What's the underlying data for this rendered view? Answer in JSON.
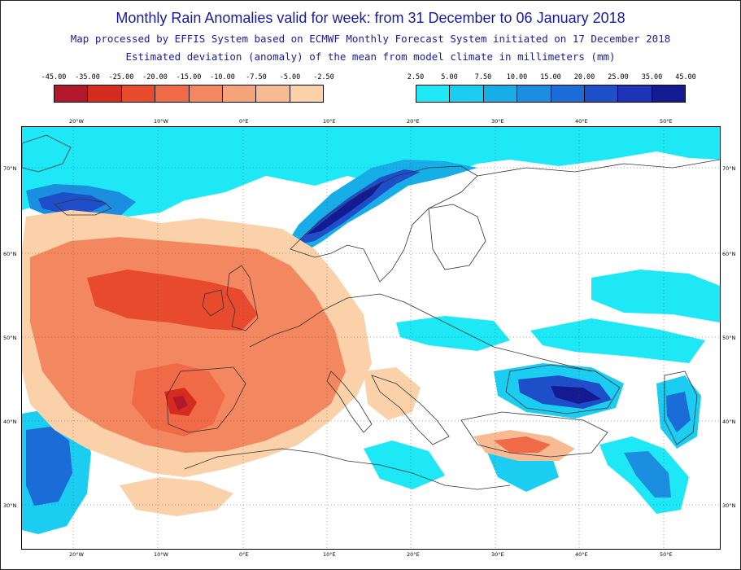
{
  "header": {
    "title": "Monthly Rain Anomalies valid for week: from 31 December to 06 January 2018",
    "subtitle": "Map processed by EFFIS System based on ECMWF Monthly Forecast System initiated on 17 December 2018",
    "description": "Estimated deviation (anomaly) of the mean from model climate in millimeters (mm)"
  },
  "legend_negative": {
    "labels": [
      "-45.00",
      "-35.00",
      "-25.00",
      "-20.00",
      "-15.00",
      "-10.00",
      "-7.50",
      "-5.00",
      "-2.50"
    ],
    "colors": [
      "#b2182b",
      "#d42d1f",
      "#e84a2e",
      "#f06a48",
      "#f3875f",
      "#f5a37b",
      "#f7ba92",
      "#fad1a8"
    ]
  },
  "legend_positive": {
    "labels": [
      "2.50",
      "5.00",
      "7.50",
      "10.00",
      "15.00",
      "20.00",
      "25.00",
      "35.00",
      "45.00"
    ],
    "colors": [
      "#1ee8f5",
      "#1ccdf2",
      "#17aee8",
      "#1b8ee0",
      "#1b6cd6",
      "#1f4ec9",
      "#1f33b8",
      "#141a92"
    ]
  },
  "map": {
    "lon_labels": [
      "20°W",
      "10°W",
      "0°E",
      "10°E",
      "20°E",
      "30°E",
      "40°E",
      "50°E"
    ],
    "lat_labels": [
      "70°N",
      "60°N",
      "50°N",
      "40°N",
      "30°N"
    ],
    "land_color": "#ffffff",
    "coast_color": "#333333"
  }
}
